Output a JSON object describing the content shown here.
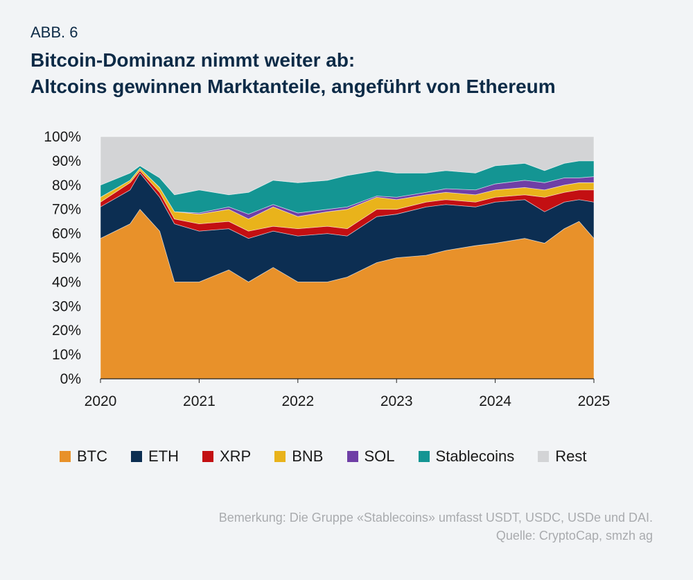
{
  "header": {
    "label": "ABB. 6",
    "title_line1": "Bitcoin-Dominanz nimmt weiter ab:",
    "title_line2": "Altcoins gewinnen Marktanteile, angeführt von Ethereum"
  },
  "footer": {
    "note": "Bemerkung: Die Gruppe «Stablecoins» umfasst USDT, USDC, USDe und DAI.",
    "source": "Quelle: CryptoCap, smzh ag"
  },
  "chart_data": {
    "type": "area",
    "stacked": true,
    "title": "",
    "xlabel": "",
    "ylabel": "",
    "xlim": [
      2020,
      2025
    ],
    "ylim": [
      0,
      100
    ],
    "x_ticks": [
      "2020",
      "2021",
      "2022",
      "2023",
      "2024",
      "2025"
    ],
    "y_ticks": [
      "0%",
      "10%",
      "20%",
      "30%",
      "40%",
      "50%",
      "60%",
      "70%",
      "80%",
      "90%",
      "100%"
    ],
    "legend_position": "bottom",
    "grid": false,
    "x": [
      2020.0,
      2020.3,
      2020.4,
      2020.6,
      2020.75,
      2021.0,
      2021.3,
      2021.5,
      2021.75,
      2022.0,
      2022.3,
      2022.5,
      2022.8,
      2023.0,
      2023.3,
      2023.5,
      2023.8,
      2024.0,
      2024.3,
      2024.5,
      2024.7,
      2024.85,
      2025.0
    ],
    "series": [
      {
        "name": "BTC",
        "color": "#e8912a",
        "values": [
          58,
          64,
          70,
          61,
          40,
          40,
          45,
          40,
          46,
          40,
          40,
          42,
          48,
          50,
          51,
          53,
          55,
          56,
          58,
          56,
          62,
          65,
          58
        ]
      },
      {
        "name": "ETH",
        "color": "#0c2e52",
        "values": [
          13,
          14,
          15,
          14,
          24,
          21,
          17,
          18,
          15,
          19,
          20,
          17,
          19,
          18,
          20,
          19,
          16,
          17,
          16,
          13,
          11,
          9,
          15
        ]
      },
      {
        "name": "XRP",
        "color": "#c30f12",
        "values": [
          2,
          3,
          1,
          2,
          2,
          3,
          3,
          3,
          2,
          3,
          3,
          3,
          3,
          2,
          2,
          2,
          2,
          2,
          2,
          6,
          4,
          4,
          5
        ]
      },
      {
        "name": "BNB",
        "color": "#e9b31b",
        "values": [
          2,
          1,
          1,
          2,
          3,
          4,
          5,
          5,
          8,
          5,
          6,
          8,
          5,
          4,
          3,
          3,
          3,
          3,
          3,
          3,
          3,
          3,
          3
        ]
      },
      {
        "name": "SOL",
        "color": "#6f3fa6",
        "values": [
          0,
          0,
          0,
          0,
          0,
          0.5,
          1,
          2,
          1,
          1.5,
          1,
          1,
          0.5,
          1,
          1,
          1.5,
          2,
          2.5,
          3,
          3,
          3,
          2,
          2.5
        ]
      },
      {
        "name": "Stablecoins",
        "color": "#149593",
        "values": [
          5,
          3,
          1,
          4,
          7,
          9.5,
          5,
          9,
          10,
          12.5,
          12,
          13,
          10.5,
          10,
          8,
          7.5,
          7,
          7.5,
          7,
          5,
          6,
          7,
          6.5
        ]
      },
      {
        "name": "Rest",
        "color": "#d3d4d6",
        "values": [
          20,
          15,
          12,
          17,
          24,
          22,
          24,
          23,
          18,
          19,
          18,
          16,
          14,
          15,
          15,
          14,
          15,
          12,
          11,
          14,
          11,
          10,
          10
        ]
      }
    ]
  }
}
